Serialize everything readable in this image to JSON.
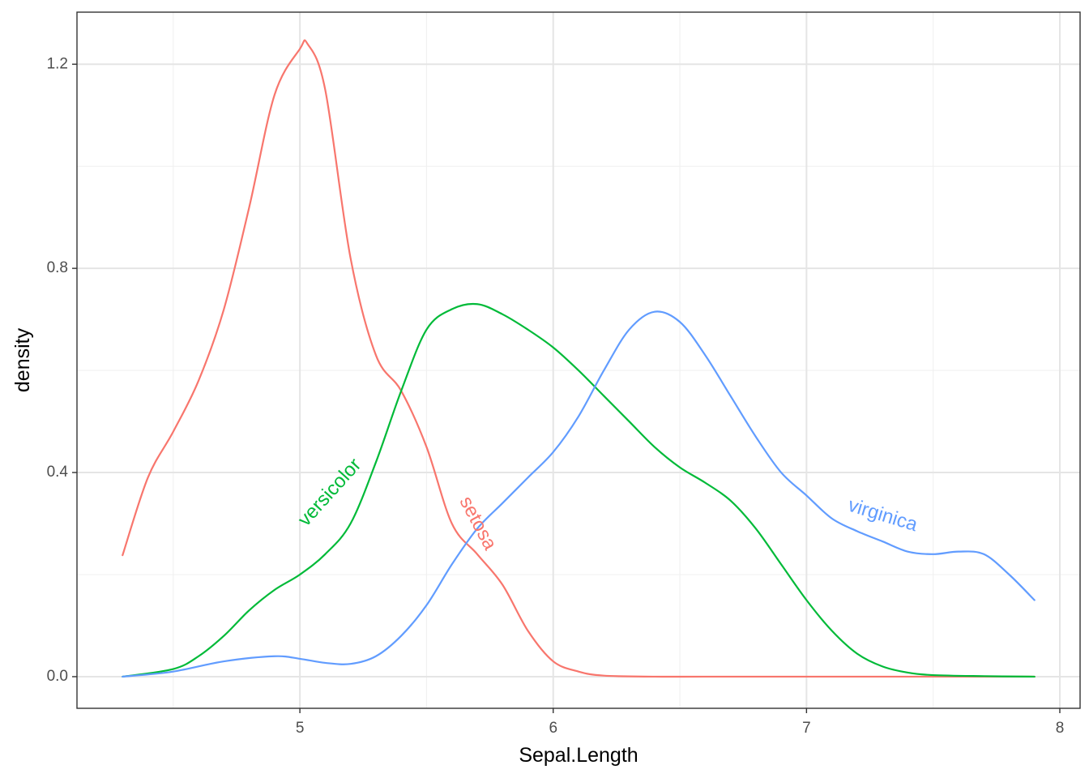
{
  "chart_data": {
    "type": "line",
    "title": "",
    "xlabel": "Sepal.Length",
    "ylabel": "density",
    "xlim": [
      4.12,
      8.08
    ],
    "ylim": [
      -0.062,
      1.302
    ],
    "x_major_ticks": [
      5,
      6,
      7,
      8
    ],
    "x_minor_ticks": [
      4.5,
      5.5,
      6.5,
      7.5
    ],
    "x_tick_labels": [
      "5",
      "6",
      "7",
      "8"
    ],
    "y_major_ticks": [
      0.0,
      0.4,
      0.8,
      1.2
    ],
    "y_minor_ticks": [
      0.2,
      0.6,
      1.0
    ],
    "y_tick_labels": [
      "0.0",
      "0.4",
      "0.8",
      "1.2"
    ],
    "grid": true,
    "legend": "none",
    "series": [
      {
        "name": "setosa",
        "color": "#F8766D",
        "label_at": [
          5.7,
          0.3
        ],
        "label_angle": 62,
        "x": [
          4.3,
          4.4,
          4.5,
          4.6,
          4.7,
          4.8,
          4.9,
          5.0,
          5.03,
          5.1,
          5.2,
          5.3,
          5.4,
          5.5,
          5.6,
          5.7,
          5.8,
          5.9,
          6.0,
          6.1,
          6.2,
          6.4,
          6.6,
          7.0,
          7.5,
          7.9
        ],
        "y": [
          0.238,
          0.39,
          0.48,
          0.58,
          0.72,
          0.92,
          1.14,
          1.23,
          1.24,
          1.15,
          0.82,
          0.63,
          0.56,
          0.45,
          0.3,
          0.24,
          0.18,
          0.09,
          0.03,
          0.01,
          0.002,
          0.0,
          0.0,
          0.0,
          0.0,
          0.0
        ]
      },
      {
        "name": "versicolor",
        "color": "#00BA38",
        "label_at": [
          5.12,
          0.36
        ],
        "label_angle": -48,
        "x": [
          4.3,
          4.5,
          4.6,
          4.7,
          4.8,
          4.9,
          5.0,
          5.1,
          5.2,
          5.3,
          5.4,
          5.5,
          5.6,
          5.7,
          5.8,
          5.9,
          6.0,
          6.1,
          6.2,
          6.3,
          6.4,
          6.5,
          6.6,
          6.7,
          6.8,
          6.9,
          7.0,
          7.1,
          7.2,
          7.3,
          7.4,
          7.5,
          7.7,
          7.9
        ],
        "y": [
          0.0,
          0.015,
          0.04,
          0.08,
          0.13,
          0.17,
          0.2,
          0.24,
          0.3,
          0.42,
          0.56,
          0.68,
          0.72,
          0.73,
          0.71,
          0.68,
          0.645,
          0.6,
          0.55,
          0.5,
          0.45,
          0.41,
          0.38,
          0.345,
          0.29,
          0.22,
          0.15,
          0.09,
          0.045,
          0.02,
          0.008,
          0.003,
          0.001,
          0.0
        ]
      },
      {
        "name": "virginica",
        "color": "#619CFF",
        "label_at": [
          7.3,
          0.315
        ],
        "label_angle": 17,
        "x": [
          4.3,
          4.5,
          4.7,
          4.9,
          5.0,
          5.1,
          5.2,
          5.3,
          5.4,
          5.5,
          5.6,
          5.7,
          5.8,
          5.9,
          6.0,
          6.1,
          6.2,
          6.3,
          6.4,
          6.5,
          6.6,
          6.7,
          6.8,
          6.9,
          7.0,
          7.1,
          7.2,
          7.3,
          7.4,
          7.5,
          7.6,
          7.7,
          7.8,
          7.9
        ],
        "y": [
          0.0,
          0.01,
          0.03,
          0.04,
          0.035,
          0.027,
          0.025,
          0.04,
          0.08,
          0.14,
          0.22,
          0.29,
          0.34,
          0.39,
          0.44,
          0.51,
          0.6,
          0.68,
          0.715,
          0.695,
          0.63,
          0.55,
          0.47,
          0.4,
          0.355,
          0.31,
          0.285,
          0.265,
          0.245,
          0.24,
          0.245,
          0.24,
          0.2,
          0.15
        ]
      }
    ]
  }
}
